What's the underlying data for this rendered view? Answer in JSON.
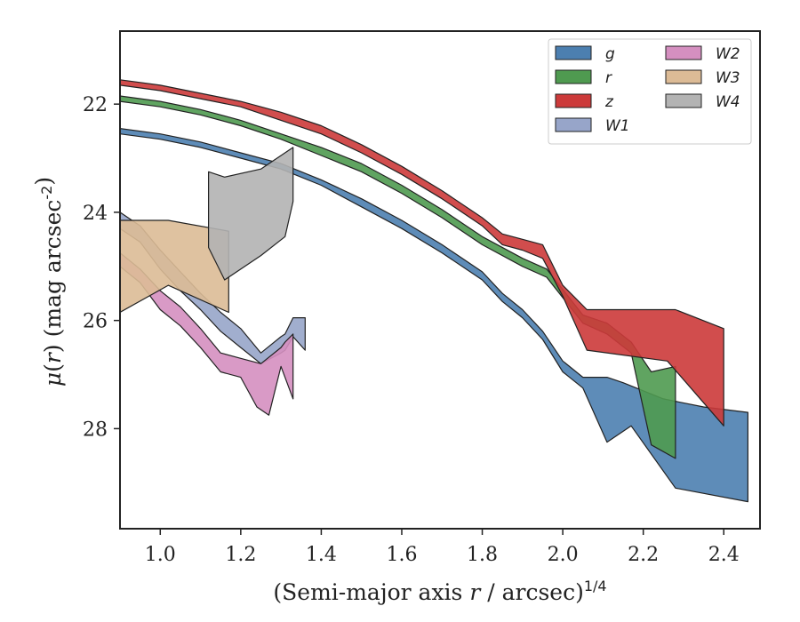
{
  "chart_data": {
    "type": "area",
    "xlabel": "(Semi-major axis r / arcsec)^{1/4}",
    "ylabel": "μ(r) (mag arcsec^{-2})",
    "xlim": [
      0.9,
      2.49
    ],
    "ylim": [
      29.85,
      20.65
    ],
    "y_inverted": true,
    "xticks": [
      1.0,
      1.2,
      1.4,
      1.6,
      1.8,
      2.0,
      2.2,
      2.4
    ],
    "yticks": [
      22,
      24,
      26,
      28
    ],
    "legend_position": "top-right",
    "legend_columns": 2,
    "grid": false,
    "series": [
      {
        "name": "g",
        "color": "#4c7fb0",
        "upper": [
          [
            0.9,
            22.45
          ],
          [
            1.0,
            22.55
          ],
          [
            1.1,
            22.7
          ],
          [
            1.2,
            22.9
          ],
          [
            1.3,
            23.1
          ],
          [
            1.4,
            23.4
          ],
          [
            1.5,
            23.75
          ],
          [
            1.6,
            24.15
          ],
          [
            1.7,
            24.6
          ],
          [
            1.8,
            25.1
          ],
          [
            1.85,
            25.5
          ],
          [
            1.9,
            25.8
          ],
          [
            1.95,
            26.2
          ],
          [
            2.0,
            26.75
          ],
          [
            2.05,
            27.05
          ],
          [
            2.11,
            27.05
          ],
          [
            2.15,
            27.15
          ],
          [
            2.25,
            27.45
          ],
          [
            2.35,
            27.6
          ],
          [
            2.46,
            27.7
          ]
        ],
        "lower": [
          [
            0.9,
            22.55
          ],
          [
            1.0,
            22.65
          ],
          [
            1.1,
            22.8
          ],
          [
            1.2,
            23.0
          ],
          [
            1.3,
            23.2
          ],
          [
            1.4,
            23.5
          ],
          [
            1.5,
            23.9
          ],
          [
            1.6,
            24.3
          ],
          [
            1.7,
            24.75
          ],
          [
            1.8,
            25.25
          ],
          [
            1.85,
            25.65
          ],
          [
            1.9,
            25.95
          ],
          [
            1.95,
            26.35
          ],
          [
            2.0,
            26.95
          ],
          [
            2.05,
            27.25
          ],
          [
            2.11,
            28.25
          ],
          [
            2.17,
            27.95
          ],
          [
            2.28,
            29.1
          ],
          [
            2.46,
            29.35
          ]
        ]
      },
      {
        "name": "r",
        "color": "#4f9a50",
        "upper": [
          [
            0.9,
            21.85
          ],
          [
            1.0,
            21.95
          ],
          [
            1.1,
            22.1
          ],
          [
            1.2,
            22.3
          ],
          [
            1.3,
            22.55
          ],
          [
            1.4,
            22.8
          ],
          [
            1.5,
            23.1
          ],
          [
            1.6,
            23.5
          ],
          [
            1.7,
            23.95
          ],
          [
            1.8,
            24.45
          ],
          [
            1.9,
            24.85
          ],
          [
            1.96,
            25.05
          ],
          [
            2.05,
            25.9
          ],
          [
            2.11,
            26.05
          ],
          [
            2.17,
            26.4
          ],
          [
            2.22,
            26.95
          ],
          [
            2.28,
            26.85
          ]
        ],
        "lower": [
          [
            0.9,
            21.95
          ],
          [
            1.0,
            22.05
          ],
          [
            1.1,
            22.2
          ],
          [
            1.2,
            22.4
          ],
          [
            1.3,
            22.65
          ],
          [
            1.4,
            22.95
          ],
          [
            1.5,
            23.25
          ],
          [
            1.6,
            23.65
          ],
          [
            1.7,
            24.1
          ],
          [
            1.8,
            24.6
          ],
          [
            1.9,
            25.0
          ],
          [
            1.96,
            25.2
          ],
          [
            2.05,
            26.05
          ],
          [
            2.11,
            26.25
          ],
          [
            2.17,
            26.6
          ],
          [
            2.22,
            28.3
          ],
          [
            2.28,
            28.55
          ]
        ]
      },
      {
        "name": "z",
        "color": "#cc3a3a",
        "upper": [
          [
            0.9,
            21.55
          ],
          [
            1.0,
            21.65
          ],
          [
            1.1,
            21.8
          ],
          [
            1.2,
            21.95
          ],
          [
            1.3,
            22.15
          ],
          [
            1.4,
            22.4
          ],
          [
            1.5,
            22.75
          ],
          [
            1.6,
            23.15
          ],
          [
            1.7,
            23.6
          ],
          [
            1.8,
            24.1
          ],
          [
            1.85,
            24.4
          ],
          [
            1.9,
            24.5
          ],
          [
            1.95,
            24.6
          ],
          [
            2.0,
            25.35
          ],
          [
            2.06,
            25.8
          ],
          [
            2.28,
            25.8
          ],
          [
            2.4,
            26.15
          ]
        ],
        "lower": [
          [
            0.9,
            21.65
          ],
          [
            1.0,
            21.75
          ],
          [
            1.1,
            21.9
          ],
          [
            1.2,
            22.05
          ],
          [
            1.3,
            22.3
          ],
          [
            1.4,
            22.55
          ],
          [
            1.5,
            22.9
          ],
          [
            1.6,
            23.3
          ],
          [
            1.7,
            23.75
          ],
          [
            1.8,
            24.25
          ],
          [
            1.85,
            24.6
          ],
          [
            1.9,
            24.7
          ],
          [
            1.95,
            24.85
          ],
          [
            2.0,
            25.55
          ],
          [
            2.06,
            26.55
          ],
          [
            2.26,
            26.75
          ],
          [
            2.4,
            27.95
          ]
        ]
      },
      {
        "name": "W1",
        "color": "#97a5c9",
        "upper": [
          [
            0.9,
            24.0
          ],
          [
            0.95,
            24.25
          ],
          [
            1.0,
            24.7
          ],
          [
            1.05,
            25.1
          ],
          [
            1.1,
            25.5
          ],
          [
            1.15,
            25.85
          ],
          [
            1.2,
            26.15
          ],
          [
            1.25,
            26.6
          ],
          [
            1.3,
            26.3
          ],
          [
            1.31,
            26.25
          ],
          [
            1.33,
            25.95
          ],
          [
            1.36,
            25.95
          ]
        ],
        "lower": [
          [
            0.9,
            24.3
          ],
          [
            0.95,
            24.55
          ],
          [
            1.0,
            25.05
          ],
          [
            1.05,
            25.45
          ],
          [
            1.1,
            25.8
          ],
          [
            1.15,
            26.2
          ],
          [
            1.2,
            26.5
          ],
          [
            1.25,
            26.8
          ],
          [
            1.3,
            26.6
          ],
          [
            1.31,
            26.55
          ],
          [
            1.33,
            26.3
          ],
          [
            1.36,
            26.55
          ]
        ]
      },
      {
        "name": "W2",
        "color": "#d58fc0",
        "upper": [
          [
            0.9,
            24.75
          ],
          [
            0.95,
            25.05
          ],
          [
            1.0,
            25.45
          ],
          [
            1.05,
            25.75
          ],
          [
            1.1,
            26.15
          ],
          [
            1.15,
            26.6
          ],
          [
            1.2,
            26.7
          ],
          [
            1.25,
            26.8
          ],
          [
            1.3,
            26.5
          ],
          [
            1.31,
            26.4
          ],
          [
            1.33,
            26.25
          ]
        ],
        "lower": [
          [
            0.9,
            25.0
          ],
          [
            0.95,
            25.3
          ],
          [
            1.0,
            25.8
          ],
          [
            1.05,
            26.1
          ],
          [
            1.1,
            26.5
          ],
          [
            1.15,
            26.95
          ],
          [
            1.2,
            27.05
          ],
          [
            1.24,
            27.6
          ],
          [
            1.27,
            27.75
          ],
          [
            1.3,
            26.85
          ],
          [
            1.33,
            27.45
          ]
        ]
      },
      {
        "name": "W3",
        "color": "#dcbb96",
        "upper": [
          [
            0.9,
            24.15
          ],
          [
            1.02,
            24.15
          ],
          [
            1.17,
            24.35
          ]
        ],
        "lower": [
          [
            0.9,
            25.85
          ],
          [
            1.02,
            25.35
          ],
          [
            1.17,
            25.85
          ]
        ]
      },
      {
        "name": "W4",
        "color": "#b3b3b3",
        "upper": [
          [
            1.12,
            23.25
          ],
          [
            1.16,
            23.35
          ],
          [
            1.25,
            23.2
          ],
          [
            1.33,
            22.8
          ]
        ],
        "lower": [
          [
            1.12,
            24.65
          ],
          [
            1.16,
            25.25
          ],
          [
            1.25,
            24.8
          ],
          [
            1.31,
            24.45
          ],
          [
            1.33,
            23.8
          ]
        ]
      }
    ]
  }
}
